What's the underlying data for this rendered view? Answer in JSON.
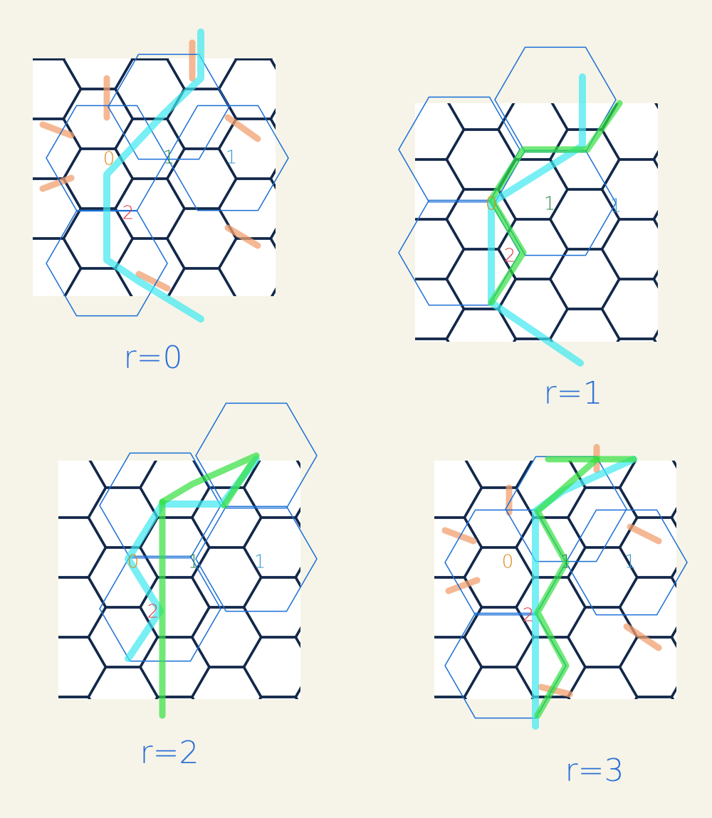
{
  "panels": [
    {
      "caption": "r=0",
      "labels": [
        "0",
        "1",
        "1",
        "2"
      ]
    },
    {
      "caption": "r=1",
      "labels": [
        "0",
        "1",
        "1",
        "2"
      ]
    },
    {
      "caption": "r=2",
      "labels": [
        "0",
        "1",
        "1",
        "2"
      ]
    },
    {
      "caption": "r=3",
      "labels": [
        "0",
        "1",
        "1",
        "2"
      ]
    }
  ]
}
